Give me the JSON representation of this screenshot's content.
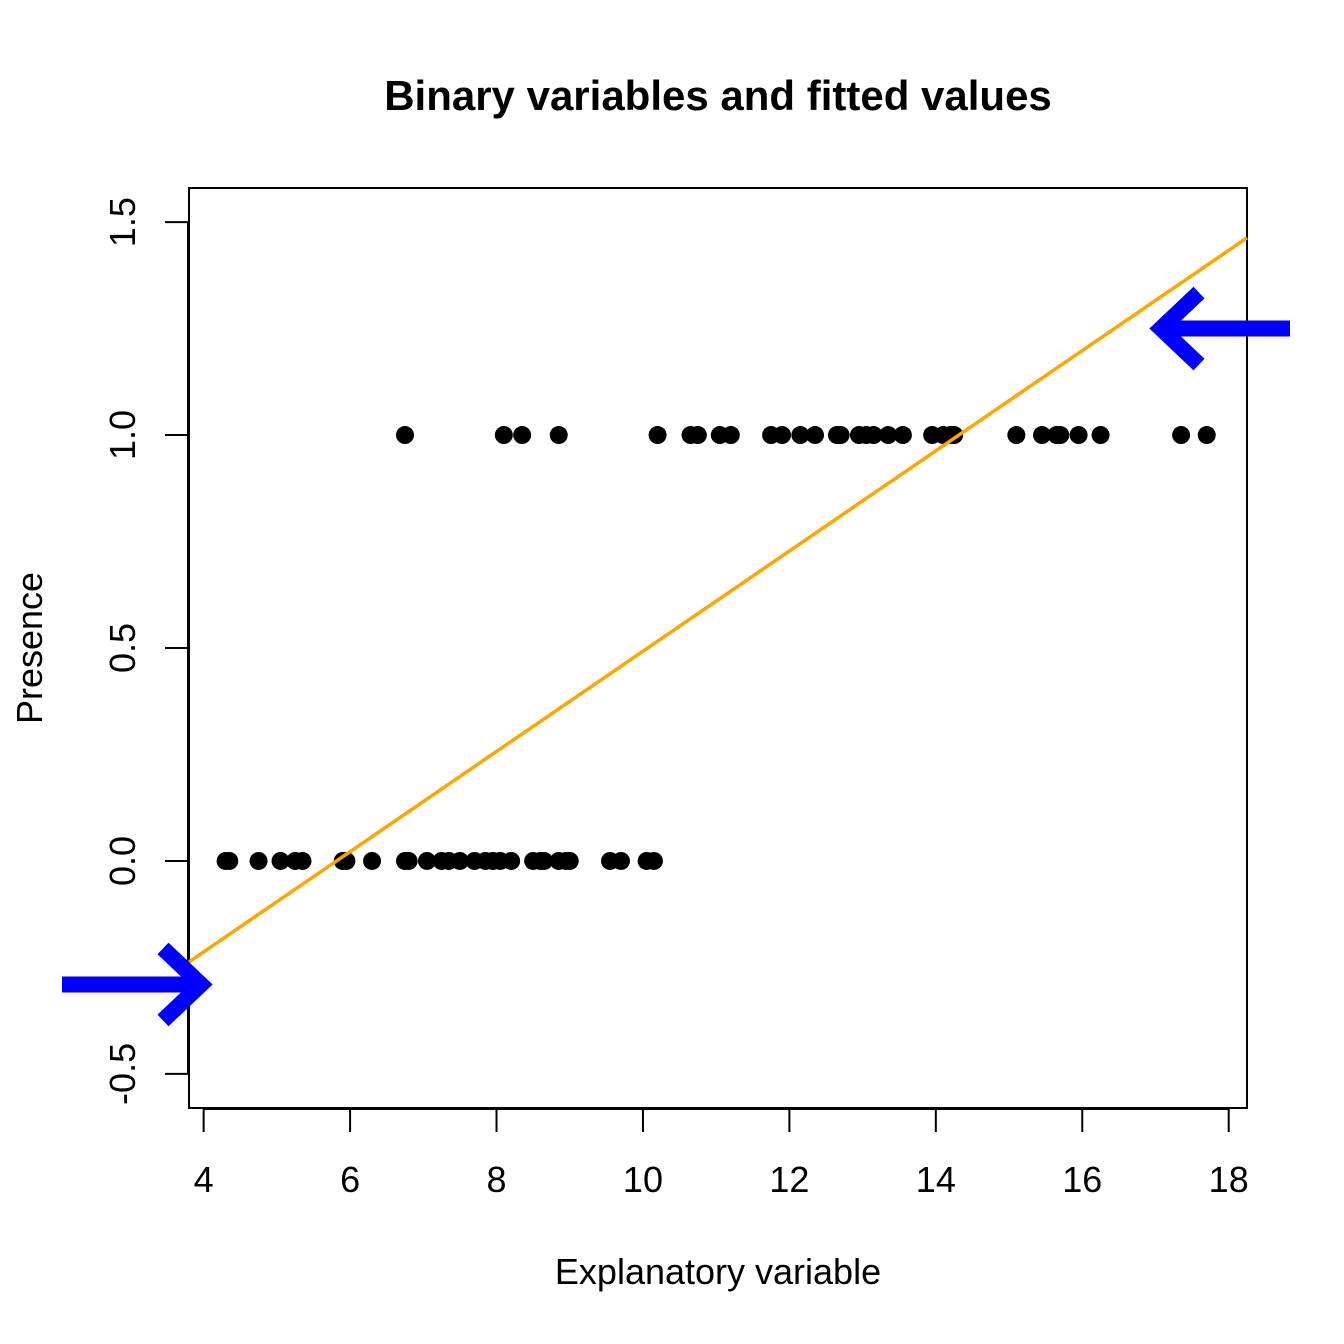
{
  "chart_data": {
    "type": "scatter",
    "title": "Binary variables and fitted values",
    "xlabel": "Explanatory variable",
    "ylabel": "Presence",
    "xlim": [
      3.8,
      18.25
    ],
    "ylim": [
      -0.58,
      1.58
    ],
    "x_ticks": [
      4,
      6,
      8,
      10,
      12,
      14,
      16,
      18
    ],
    "x_tick_labels": [
      "4",
      "6",
      "8",
      "10",
      "12",
      "14",
      "16",
      "18"
    ],
    "y_ticks": [
      -0.5,
      0.0,
      0.5,
      1.0,
      1.5
    ],
    "y_tick_labels": [
      "-0.5",
      "0.0",
      "0.5",
      "1.0",
      "1.5"
    ],
    "grid": false,
    "legend": "none",
    "series": [
      {
        "values_y": 0,
        "x": [
          4.3,
          4.35,
          4.75,
          5.05,
          5.25,
          5.35,
          5.9,
          5.95,
          6.3,
          6.75,
          6.8,
          7.05,
          7.25,
          7.35,
          7.5,
          7.7,
          7.85,
          7.95,
          8.05,
          8.2,
          8.5,
          8.6,
          8.65,
          8.85,
          8.95,
          9.0,
          9.55,
          9.7,
          10.05,
          10.15
        ],
        "y": [
          0,
          0,
          0,
          0,
          0,
          0,
          0,
          0,
          0,
          0,
          0,
          0,
          0,
          0,
          0,
          0,
          0,
          0,
          0,
          0,
          0,
          0,
          0,
          0,
          0,
          0,
          0,
          0,
          0,
          0
        ],
        "color": "#000000"
      },
      {
        "x": [
          6.75,
          8.1,
          8.35,
          8.85,
          10.2,
          10.65,
          10.75,
          11.05,
          11.2,
          11.75,
          11.9,
          12.15,
          12.35,
          12.65,
          12.7,
          12.95,
          13.05,
          13.15,
          13.35,
          13.55,
          13.95,
          14.1,
          14.2,
          14.25,
          15.1,
          15.45,
          15.65,
          15.7,
          15.95,
          16.25,
          17.35,
          17.7
        ],
        "y": [
          1,
          1,
          1,
          1,
          1,
          1,
          1,
          1,
          1,
          1,
          1,
          1,
          1,
          1,
          1,
          1,
          1,
          1,
          1,
          1,
          1,
          1,
          1,
          1,
          1,
          1,
          1,
          1,
          1,
          1,
          1,
          1
        ],
        "color": "#000000"
      }
    ],
    "fitted_line": {
      "x": [
        3.8,
        18.25
      ],
      "y": [
        -0.237,
        1.463
      ],
      "color": "#ffa500"
    },
    "annotations": [
      {
        "type": "arrow",
        "direction": "right",
        "y": -0.29,
        "color": "#0000ff"
      },
      {
        "type": "arrow",
        "direction": "left",
        "y": 1.25,
        "color": "#0000ff"
      }
    ]
  }
}
